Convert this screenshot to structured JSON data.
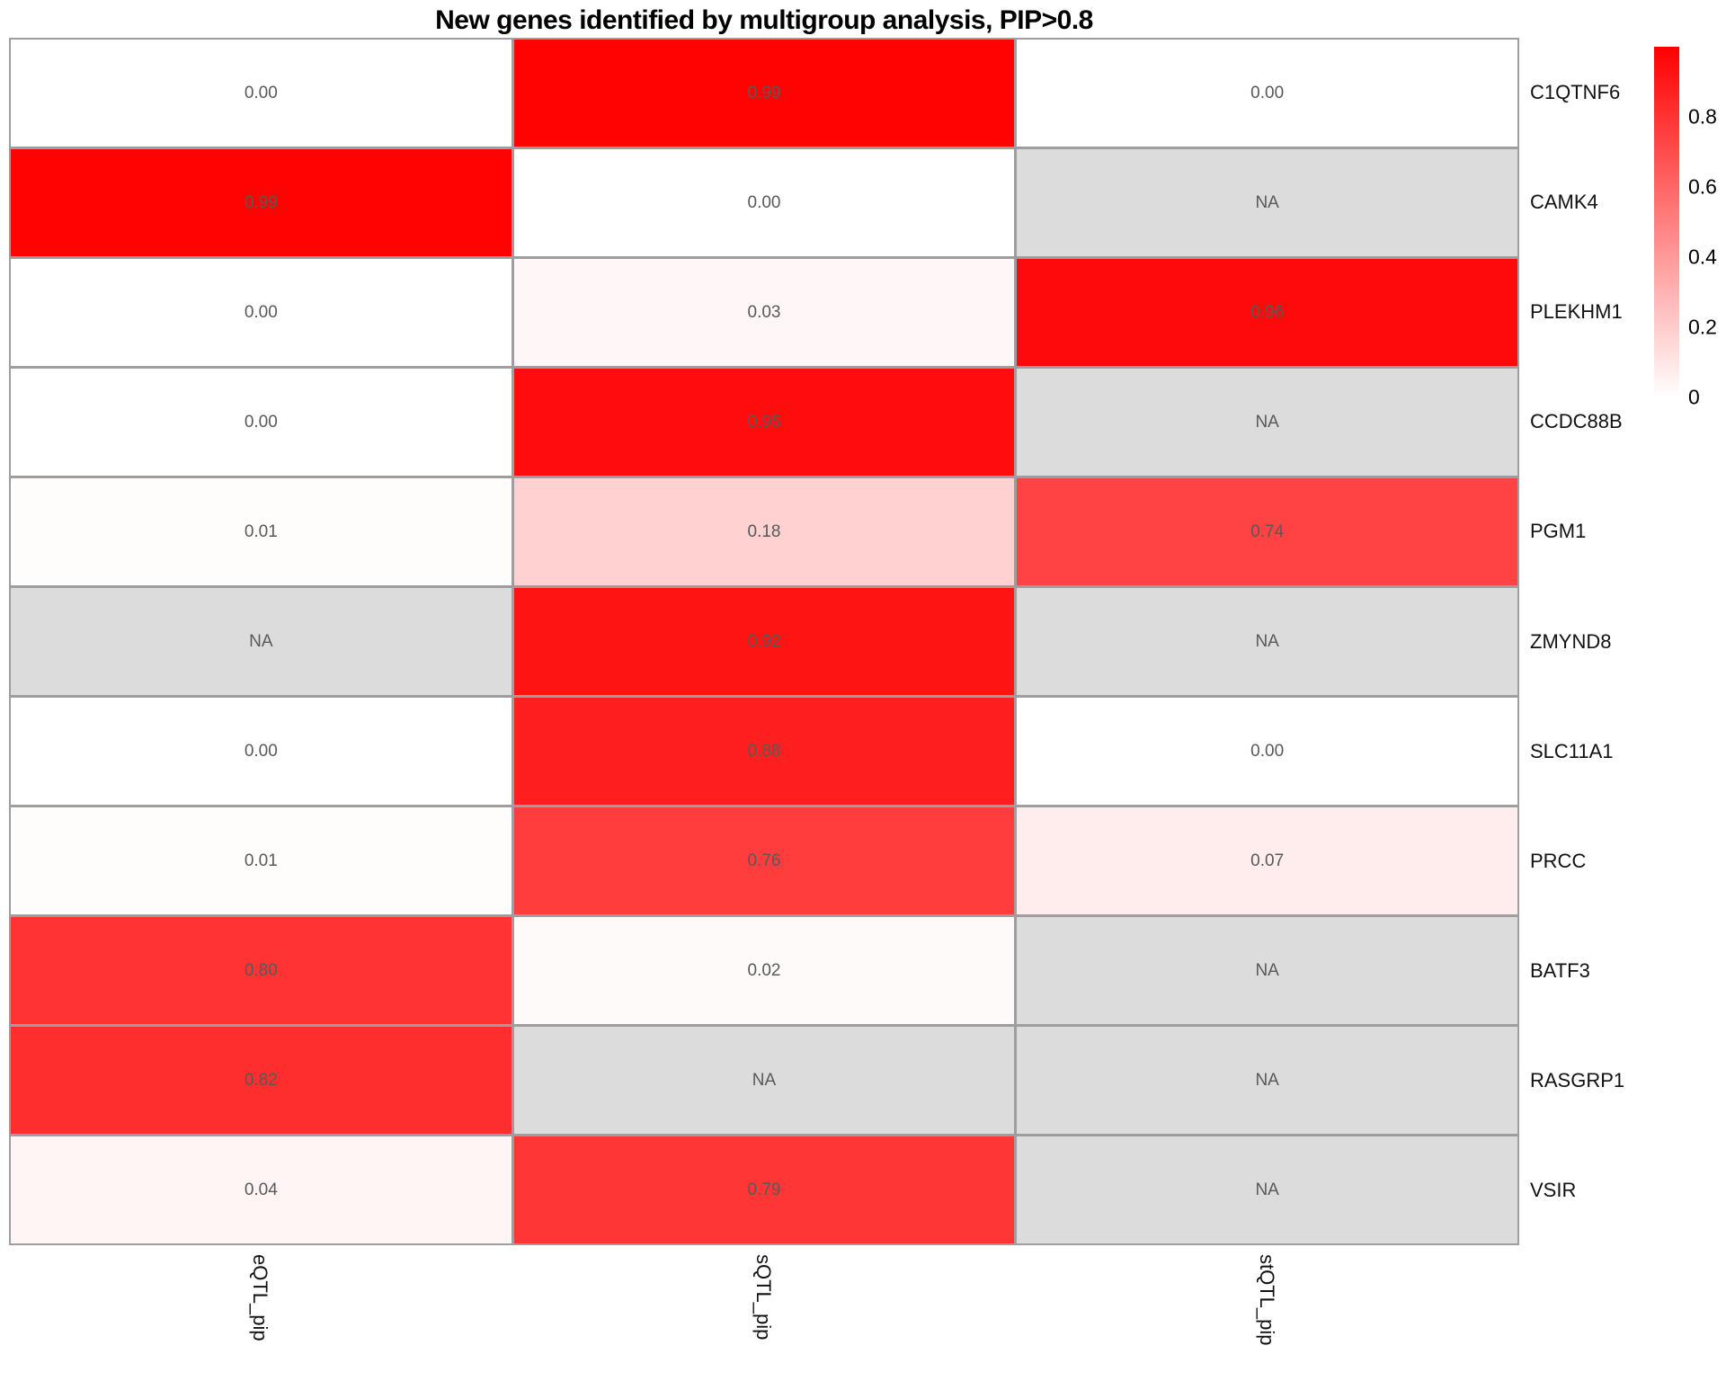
{
  "chart_data": {
    "type": "heatmap",
    "title": "New genes identified by multigroup analysis, PIP>0.8",
    "columns": [
      "eQTL_pip",
      "sQTL_pip",
      "stQTL_pip"
    ],
    "rows": [
      "C1QTNF6",
      "CAMK4",
      "PLEKHM1",
      "CCDC88B",
      "PGM1",
      "ZMYND8",
      "SLC11A1",
      "PRCC",
      "BATF3",
      "RASGRP1",
      "VSIR"
    ],
    "values": [
      [
        "0.00",
        "0.99",
        "0.00"
      ],
      [
        "0.99",
        "0.00",
        "NA"
      ],
      [
        "0.00",
        "0.03",
        "0.96"
      ],
      [
        "0.00",
        "0.95",
        "NA"
      ],
      [
        "0.01",
        "0.18",
        "0.74"
      ],
      [
        "NA",
        "0.92",
        "NA"
      ],
      [
        "0.00",
        "0.88",
        "0.00"
      ],
      [
        "0.01",
        "0.76",
        "0.07"
      ],
      [
        "0.80",
        "0.02",
        "NA"
      ],
      [
        "0.82",
        "NA",
        "NA"
      ],
      [
        "0.04",
        "0.79",
        "NA"
      ]
    ],
    "na_label": "NA",
    "colorscale": {
      "min": 0,
      "max": 1,
      "low_color": "#FFFFFF",
      "high_color": "#FF0000",
      "na_color": "#DCDCDC"
    },
    "legend": {
      "position": "right",
      "ticks": [
        {
          "label": "0.8",
          "value": 0.8
        },
        {
          "label": "0.6",
          "value": 0.6
        },
        {
          "label": "0.4",
          "value": 0.4
        },
        {
          "label": "0.2",
          "value": 0.2
        },
        {
          "label": "0",
          "value": 0.0
        }
      ]
    },
    "layout": {
      "grid_lines": true,
      "grid_line_color": "#9E9E9E",
      "cell_text_color": "#595959",
      "xlabel": "",
      "ylabel": "",
      "x_tick_rotation_deg": 90
    }
  }
}
